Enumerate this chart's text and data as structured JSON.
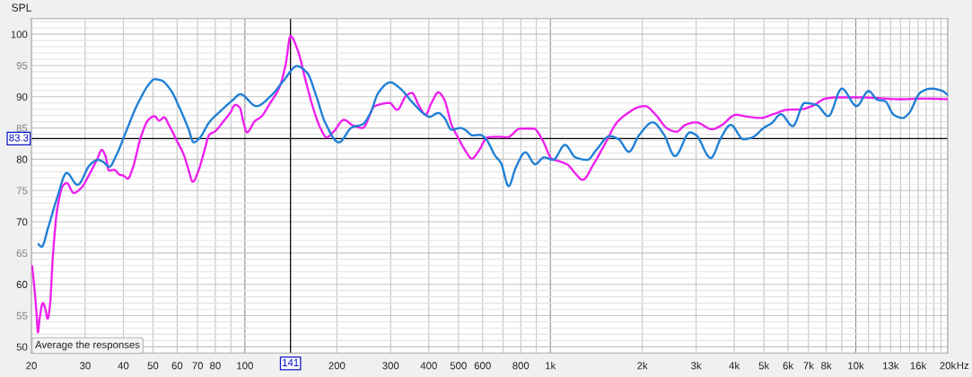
{
  "chart_data": {
    "type": "line",
    "ylabel": "SPL",
    "xlabel": "Hz",
    "log": "x",
    "grid": true,
    "line_style": "solid",
    "xlim": [
      20,
      20000
    ],
    "ylim": [
      49,
      102.5
    ],
    "xticks": [
      20,
      30,
      40,
      50,
      60,
      70,
      80,
      {
        "value": 90,
        "label": null
      },
      100,
      200,
      300,
      400,
      500,
      600,
      {
        "value": 700,
        "label": null
      },
      800,
      {
        "value": 900,
        "label": null
      },
      {
        "value": 1000,
        "label": "1k"
      },
      {
        "value": 2000,
        "label": "2k"
      },
      {
        "value": 3000,
        "label": "3k"
      },
      {
        "value": 4000,
        "label": "4k"
      },
      {
        "value": 5000,
        "label": "5k"
      },
      {
        "value": 6000,
        "label": "6k"
      },
      {
        "value": 7000,
        "label": "7k"
      },
      {
        "value": 8000,
        "label": "8k"
      },
      {
        "value": 9000,
        "label": null
      },
      {
        "value": 10000,
        "label": "10k"
      },
      {
        "value": 11000,
        "label": null
      },
      {
        "value": 12000,
        "label": null
      },
      {
        "value": 13000,
        "label": "13k"
      },
      {
        "value": 14000,
        "label": null
      },
      {
        "value": 15000,
        "label": null
      },
      {
        "value": 16000,
        "label": "16k"
      },
      {
        "value": 17000,
        "label": null
      },
      {
        "value": 18000,
        "label": null
      },
      {
        "value": 19000,
        "label": null
      },
      {
        "value": 20000,
        "label": "20k"
      }
    ],
    "yticks": [
      50,
      {
        "value": 51,
        "label": null
      },
      {
        "value": 52,
        "label": null
      },
      {
        "value": 53,
        "label": null
      },
      {
        "value": 54,
        "label": null
      },
      55,
      {
        "value": 56,
        "label": null
      },
      {
        "value": 57,
        "label": null
      },
      {
        "value": 58,
        "label": null
      },
      {
        "value": 59,
        "label": null
      },
      60,
      {
        "value": 61,
        "label": null
      },
      {
        "value": 62,
        "label": null
      },
      {
        "value": 63,
        "label": null
      },
      {
        "value": 64,
        "label": null
      },
      65,
      {
        "value": 66,
        "label": null
      },
      {
        "value": 67,
        "label": null
      },
      {
        "value": 68,
        "label": null
      },
      {
        "value": 69,
        "label": null
      },
      70,
      {
        "value": 71,
        "label": null
      },
      {
        "value": 72,
        "label": null
      },
      {
        "value": 73,
        "label": null
      },
      {
        "value": 74,
        "label": null
      },
      75,
      {
        "value": 76,
        "label": null
      },
      {
        "value": 77,
        "label": null
      },
      {
        "value": 78,
        "label": null
      },
      {
        "value": 79,
        "label": null
      },
      80,
      {
        "value": 81,
        "label": null
      },
      {
        "value": 82,
        "label": null
      },
      {
        "value": 83,
        "label": null
      },
      {
        "value": 84,
        "label": null
      },
      85,
      {
        "value": 86,
        "label": null
      },
      {
        "value": 87,
        "label": null
      },
      {
        "value": 88,
        "label": null
      },
      {
        "value": 89,
        "label": null
      },
      90,
      {
        "value": 91,
        "label": null
      },
      {
        "value": 92,
        "label": null
      },
      {
        "value": 93,
        "label": null
      },
      {
        "value": 94,
        "label": null
      },
      95,
      {
        "value": 96,
        "label": null
      },
      {
        "value": 97,
        "label": null
      },
      {
        "value": 98,
        "label": null
      },
      {
        "value": 99,
        "label": null
      },
      100,
      {
        "value": 101,
        "label": null
      },
      {
        "value": 102,
        "label": null
      }
    ],
    "ref_lines": [
      {
        "axis": "y",
        "value": 83.3,
        "label": "83.3",
        "color": "#000000"
      },
      {
        "axis": "x",
        "value": 141,
        "label": "141",
        "color": "#000000"
      }
    ],
    "annotations": [
      "Average the responses"
    ],
    "series": [
      {
        "color": "#ee1fee",
        "x": [
          20.1,
          20.4,
          20.8,
          21.0,
          21.3,
          21.8,
          22.2,
          22.6,
          23.0,
          23.5,
          24.3,
          25.4,
          26.1,
          27.5,
          29.1,
          30.9,
          32.9,
          34.0,
          34.9,
          35.9,
          37.3,
          39.0,
          39.9,
          41.4,
          43.0,
          45.6,
          48.3,
          50.5,
          52.4,
          54.4,
          56.5,
          59.8,
          63.2,
          65.3,
          67.5,
          70.5,
          73.8,
          76.4,
          80.0,
          84.6,
          89.7,
          92.9,
          96.1,
          99.4,
          101.5,
          107.8,
          113,
          121,
          130,
          136,
          141,
          149,
          158,
          167,
          177,
          185,
          195,
          211,
          226,
          243,
          266,
          298,
          315,
          338,
          352,
          372,
          390,
          408,
          430,
          448,
          476,
          497,
          528,
          553,
          582,
          623,
          675,
          722,
          797,
          883,
          944,
          1010,
          1080,
          1141,
          1208,
          1276,
          1381,
          1511,
          1653,
          1808,
          1934,
          2045,
          2213,
          2419,
          2586,
          2767,
          2995,
          3388,
          3625,
          4050,
          4436,
          4859,
          5433,
          5946,
          6645,
          7264,
          7944,
          8693,
          10060,
          11650,
          13931,
          16667,
          20000
        ],
        "values": [
          62.9,
          60.0,
          55.2,
          52.3,
          54.7,
          57.0,
          56.1,
          54.5,
          56.6,
          64.3,
          72.0,
          75.8,
          76.2,
          74.6,
          75.4,
          77.5,
          80.1,
          81.5,
          80.6,
          78.2,
          78.3,
          77.5,
          77.4,
          76.9,
          78.7,
          83.5,
          86.3,
          86.9,
          86.2,
          86.7,
          85.4,
          83.0,
          80.6,
          78.4,
          76.4,
          78.2,
          81.5,
          83.9,
          84.5,
          85.9,
          87.5,
          88.7,
          88.3,
          85.5,
          84.3,
          86.1,
          86.8,
          89.0,
          91.6,
          95.2,
          99.7,
          97.4,
          92.6,
          88.3,
          84.9,
          83.5,
          84.4,
          86.3,
          85.4,
          85.0,
          88.5,
          89.0,
          87.9,
          90.2,
          90.6,
          88.5,
          87.1,
          89.0,
          90.7,
          89.7,
          85.4,
          83.6,
          81.3,
          80.1,
          81.3,
          83.5,
          83.6,
          83.5,
          84.9,
          84.9,
          83.0,
          80.1,
          79.6,
          79.1,
          77.7,
          76.7,
          79.1,
          82.5,
          85.9,
          87.5,
          88.3,
          88.5,
          87.1,
          84.9,
          84.4,
          85.5,
          85.9,
          84.8,
          85.4,
          87.1,
          86.8,
          86.6,
          87.3,
          87.9,
          88.0,
          88.6,
          89.7,
          89.9,
          89.9,
          89.8,
          89.6,
          89.7,
          89.6
        ]
      },
      {
        "color": "#1e7fd6",
        "x": [
          21.1,
          21.6,
          22.7,
          24.3,
          26.1,
          28.3,
          31.1,
          33.0,
          34.3,
          36.0,
          37.9,
          40.8,
          44.4,
          48.9,
          50.5,
          53.3,
          57.1,
          61.0,
          65.3,
          68.0,
          71.1,
          76.4,
          83.6,
          91.4,
          96.6,
          109,
          122,
          134,
          148,
          160,
          171,
          183,
          203,
          224,
          243,
          257,
          274,
          299,
          321,
          352,
          385,
          402,
          430,
          450,
          475,
          508,
          526,
          557,
          589,
          616,
          659,
          689,
          730,
          771,
          828,
          892,
          954,
          1021,
          1117,
          1208,
          1322,
          1414,
          1564,
          1672,
          1808,
          1955,
          2163,
          2350,
          2559,
          2864,
          2995,
          3350,
          3625,
          3893,
          4288,
          4539,
          5024,
          5311,
          5680,
          6216,
          6797,
          7433,
          8128,
          8994,
          10060,
          11009,
          11781,
          12455,
          13318,
          14245,
          14894,
          16293,
          17622,
          19058,
          20000
        ],
        "values": [
          66.4,
          66.0,
          69.1,
          73.9,
          77.8,
          75.9,
          79.1,
          79.9,
          79.6,
          78.8,
          80.6,
          84.4,
          88.7,
          92.2,
          92.8,
          92.6,
          91.1,
          88.3,
          84.9,
          82.7,
          83.4,
          85.9,
          87.8,
          89.5,
          90.4,
          88.5,
          90.2,
          92.6,
          94.9,
          93.8,
          90.2,
          85.9,
          82.7,
          85.1,
          85.6,
          87.3,
          90.7,
          92.3,
          91.4,
          89.2,
          87.3,
          86.8,
          87.4,
          86.6,
          84.7,
          85.0,
          84.7,
          83.8,
          83.9,
          83.2,
          80.6,
          79.4,
          75.7,
          78.7,
          81.1,
          79.2,
          80.3,
          79.9,
          82.3,
          80.3,
          79.9,
          81.5,
          83.7,
          83.2,
          81.2,
          83.9,
          85.9,
          84.0,
          80.5,
          84.3,
          83.9,
          80.2,
          83.5,
          85.5,
          83.2,
          83.4,
          85.1,
          85.8,
          87.2,
          85.3,
          89.0,
          88.7,
          86.9,
          91.3,
          88.5,
          90.9,
          89.5,
          89.3,
          87.1,
          86.6,
          87.3,
          90.7,
          91.3,
          91.0,
          90.3
        ]
      }
    ]
  }
}
